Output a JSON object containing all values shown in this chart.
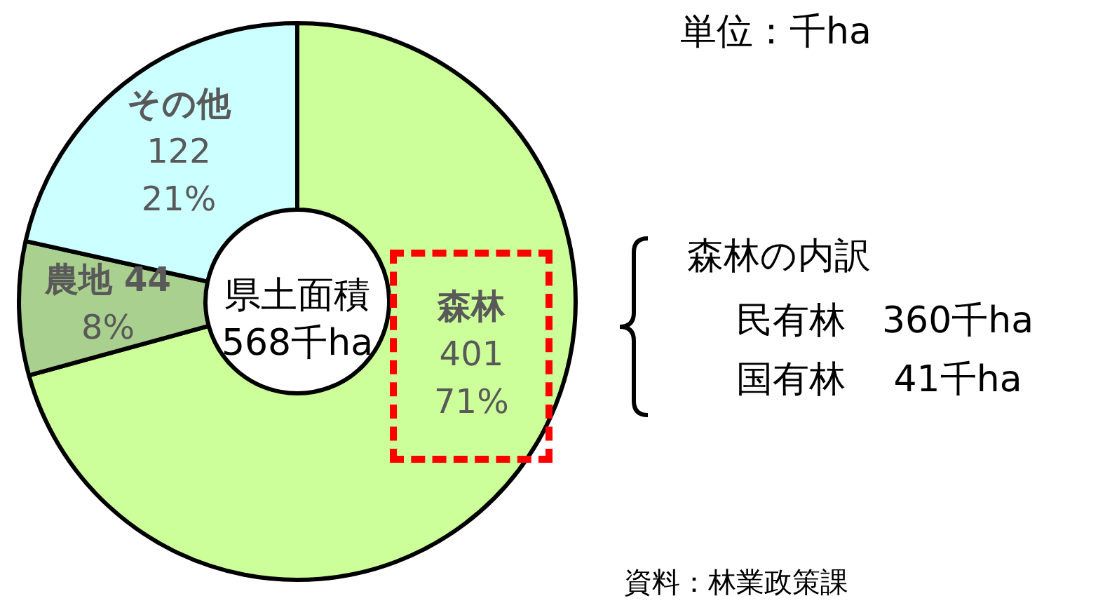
{
  "chart_data": {
    "type": "donut",
    "categories": [
      "森林",
      "農地",
      "その他"
    ],
    "values": [
      401,
      44,
      122
    ],
    "colors": [
      "#ccff99",
      "#a9d08e",
      "#ccffff"
    ],
    "value_labels": [
      "401\n71%",
      "44\n8%",
      "122\n21%"
    ],
    "annotations": [
      "単位：千ha",
      "県土面積",
      "568千ha",
      "森林の内訳",
      "民有林　360千ha",
      "国有林　 41千ha",
      "資料：林業政策課"
    ]
  }
}
